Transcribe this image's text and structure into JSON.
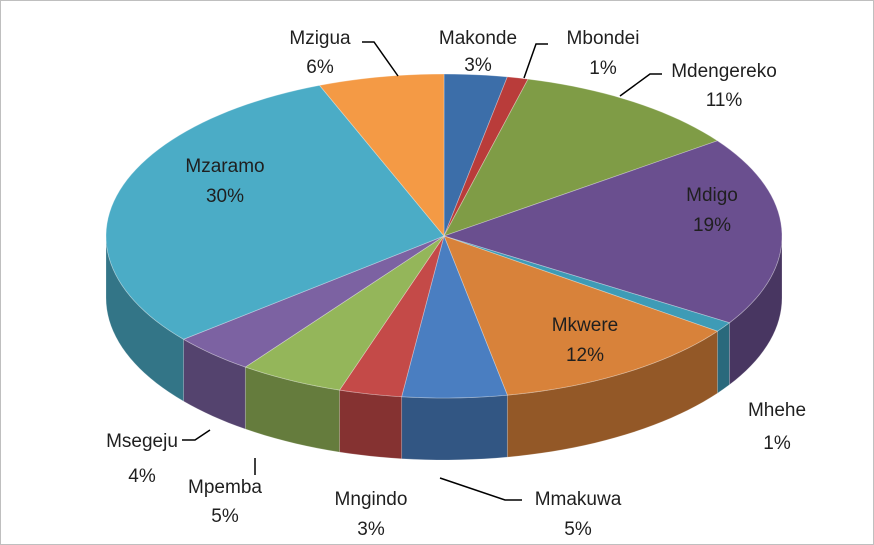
{
  "chart_data": {
    "type": "pie3d",
    "categories": [
      "Makonde",
      "Mbondei",
      "Mdengereko",
      "Mdigo",
      "Mhehe",
      "Mkwere",
      "Mmakuwa",
      "Mngindo",
      "Mpemba",
      "Msegeju",
      "Mzaramo",
      "Mzigua"
    ],
    "values": [
      3,
      1,
      11,
      19,
      1,
      12,
      5,
      3,
      5,
      4,
      30,
      6
    ],
    "value_labels": [
      "3%",
      "1%",
      "11%",
      "19%",
      "1%",
      "12%",
      "5%",
      "3%",
      "5%",
      "4%",
      "30%",
      "6%"
    ],
    "colors": [
      "#3c6ea9",
      "#b93c3a",
      "#7f9c46",
      "#6a4f8f",
      "#3e9bb6",
      "#d8823a",
      "#4a7ec1",
      "#c44a48",
      "#94b65a",
      "#7c62a2",
      "#4bacc6",
      "#f49a45"
    ]
  }
}
